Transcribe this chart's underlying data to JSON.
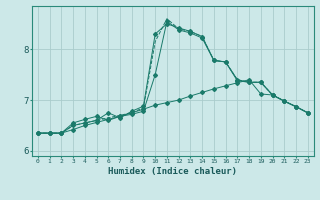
{
  "xlabel": "Humidex (Indice chaleur)",
  "bg_color": "#cce8e8",
  "grid_color": "#aacccc",
  "line_color": "#1a7a6a",
  "x_values": [
    0,
    1,
    2,
    3,
    4,
    5,
    6,
    7,
    8,
    9,
    10,
    11,
    12,
    13,
    14,
    15,
    16,
    17,
    18,
    19,
    20,
    21,
    22,
    23
  ],
  "series1_nodots": [
    6.35,
    6.35,
    6.35,
    6.5,
    6.55,
    6.6,
    6.65,
    6.7,
    6.75,
    6.85,
    8.15,
    8.6,
    8.4,
    8.35,
    8.25,
    7.78,
    7.75,
    7.4,
    7.35,
    7.35,
    7.1,
    6.98,
    6.87,
    6.75
  ],
  "series2_dots": [
    6.35,
    6.35,
    6.35,
    6.5,
    6.55,
    6.6,
    6.75,
    6.65,
    6.78,
    6.88,
    8.3,
    8.5,
    8.42,
    8.35,
    8.25,
    7.78,
    7.75,
    7.4,
    7.35,
    7.35,
    7.1,
    6.98,
    6.87,
    6.75
  ],
  "series3_upper": [
    6.35,
    6.35,
    6.35,
    6.55,
    6.62,
    6.68,
    6.6,
    6.68,
    6.72,
    6.78,
    7.5,
    8.55,
    8.38,
    8.32,
    8.22,
    7.78,
    7.75,
    7.38,
    7.35,
    7.35,
    7.1,
    6.98,
    6.87,
    6.75
  ],
  "series4_flat": [
    6.35,
    6.35,
    6.35,
    6.42,
    6.5,
    6.56,
    6.62,
    6.68,
    6.75,
    6.82,
    6.9,
    6.95,
    7.0,
    7.08,
    7.15,
    7.22,
    7.28,
    7.34,
    7.4,
    7.12,
    7.1,
    6.98,
    6.87,
    6.75
  ],
  "ylim": [
    5.9,
    8.85
  ],
  "yticks": [
    6,
    7,
    8
  ],
  "xlim": [
    -0.5,
    23.5
  ]
}
